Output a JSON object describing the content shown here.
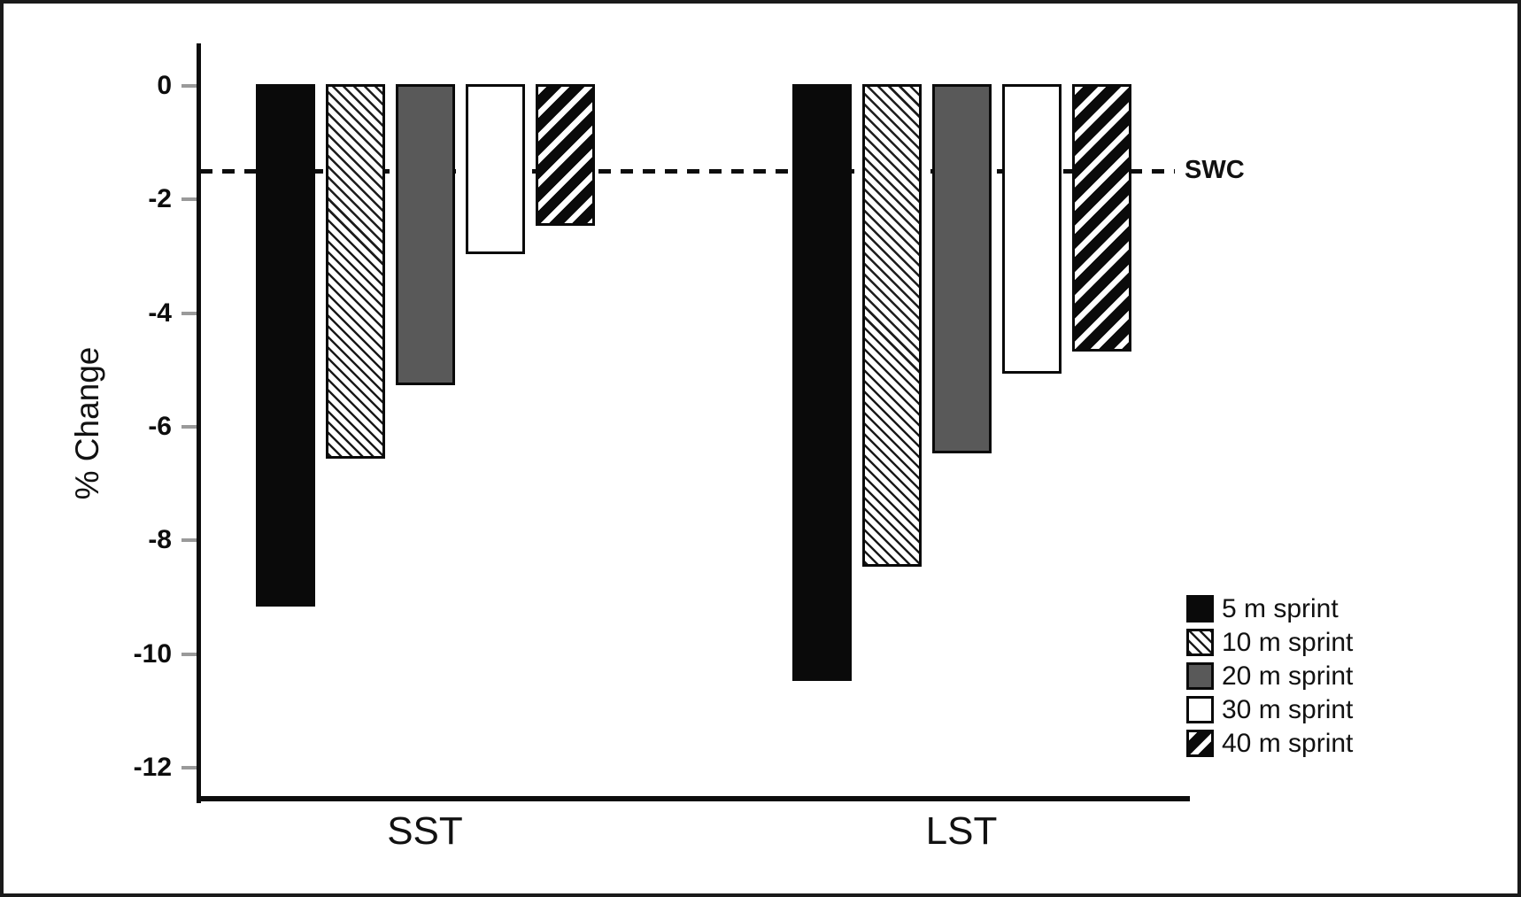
{
  "chart_data": {
    "type": "bar",
    "title": "",
    "ylabel": "% Change",
    "xlabel": "",
    "groups": [
      "SST",
      "LST"
    ],
    "series": [
      {
        "name": "5 m sprint",
        "pattern": "solid-black",
        "values": [
          -9.2,
          -10.5
        ]
      },
      {
        "name": "10 m sprint",
        "pattern": "light-diagonal-hatch",
        "values": [
          -6.6,
          -8.5
        ]
      },
      {
        "name": "20 m sprint",
        "pattern": "solid-darkgray",
        "values": [
          -5.3,
          -6.5
        ]
      },
      {
        "name": "30 m sprint",
        "pattern": "solid-white",
        "values": [
          -3.0,
          -5.1
        ]
      },
      {
        "name": "40 m sprint",
        "pattern": "bold-diagonal-hatch",
        "values": [
          -2.5,
          -4.7
        ]
      }
    ],
    "yticks": [
      0,
      -2,
      -4,
      -6,
      -8,
      -10,
      -12
    ],
    "ylim": [
      -12.6,
      0.75
    ],
    "reference_line": {
      "value": -1.5,
      "label": "SWC",
      "style": "dashed"
    },
    "legend_position": "lower-right",
    "grid": false,
    "colors": {
      "bar_black": "#0a0a0a",
      "bar_darkgray": "#595959",
      "bar_white": "#ffffff",
      "axis": "#0d0d0d",
      "tick": "#9a9a9a"
    }
  }
}
